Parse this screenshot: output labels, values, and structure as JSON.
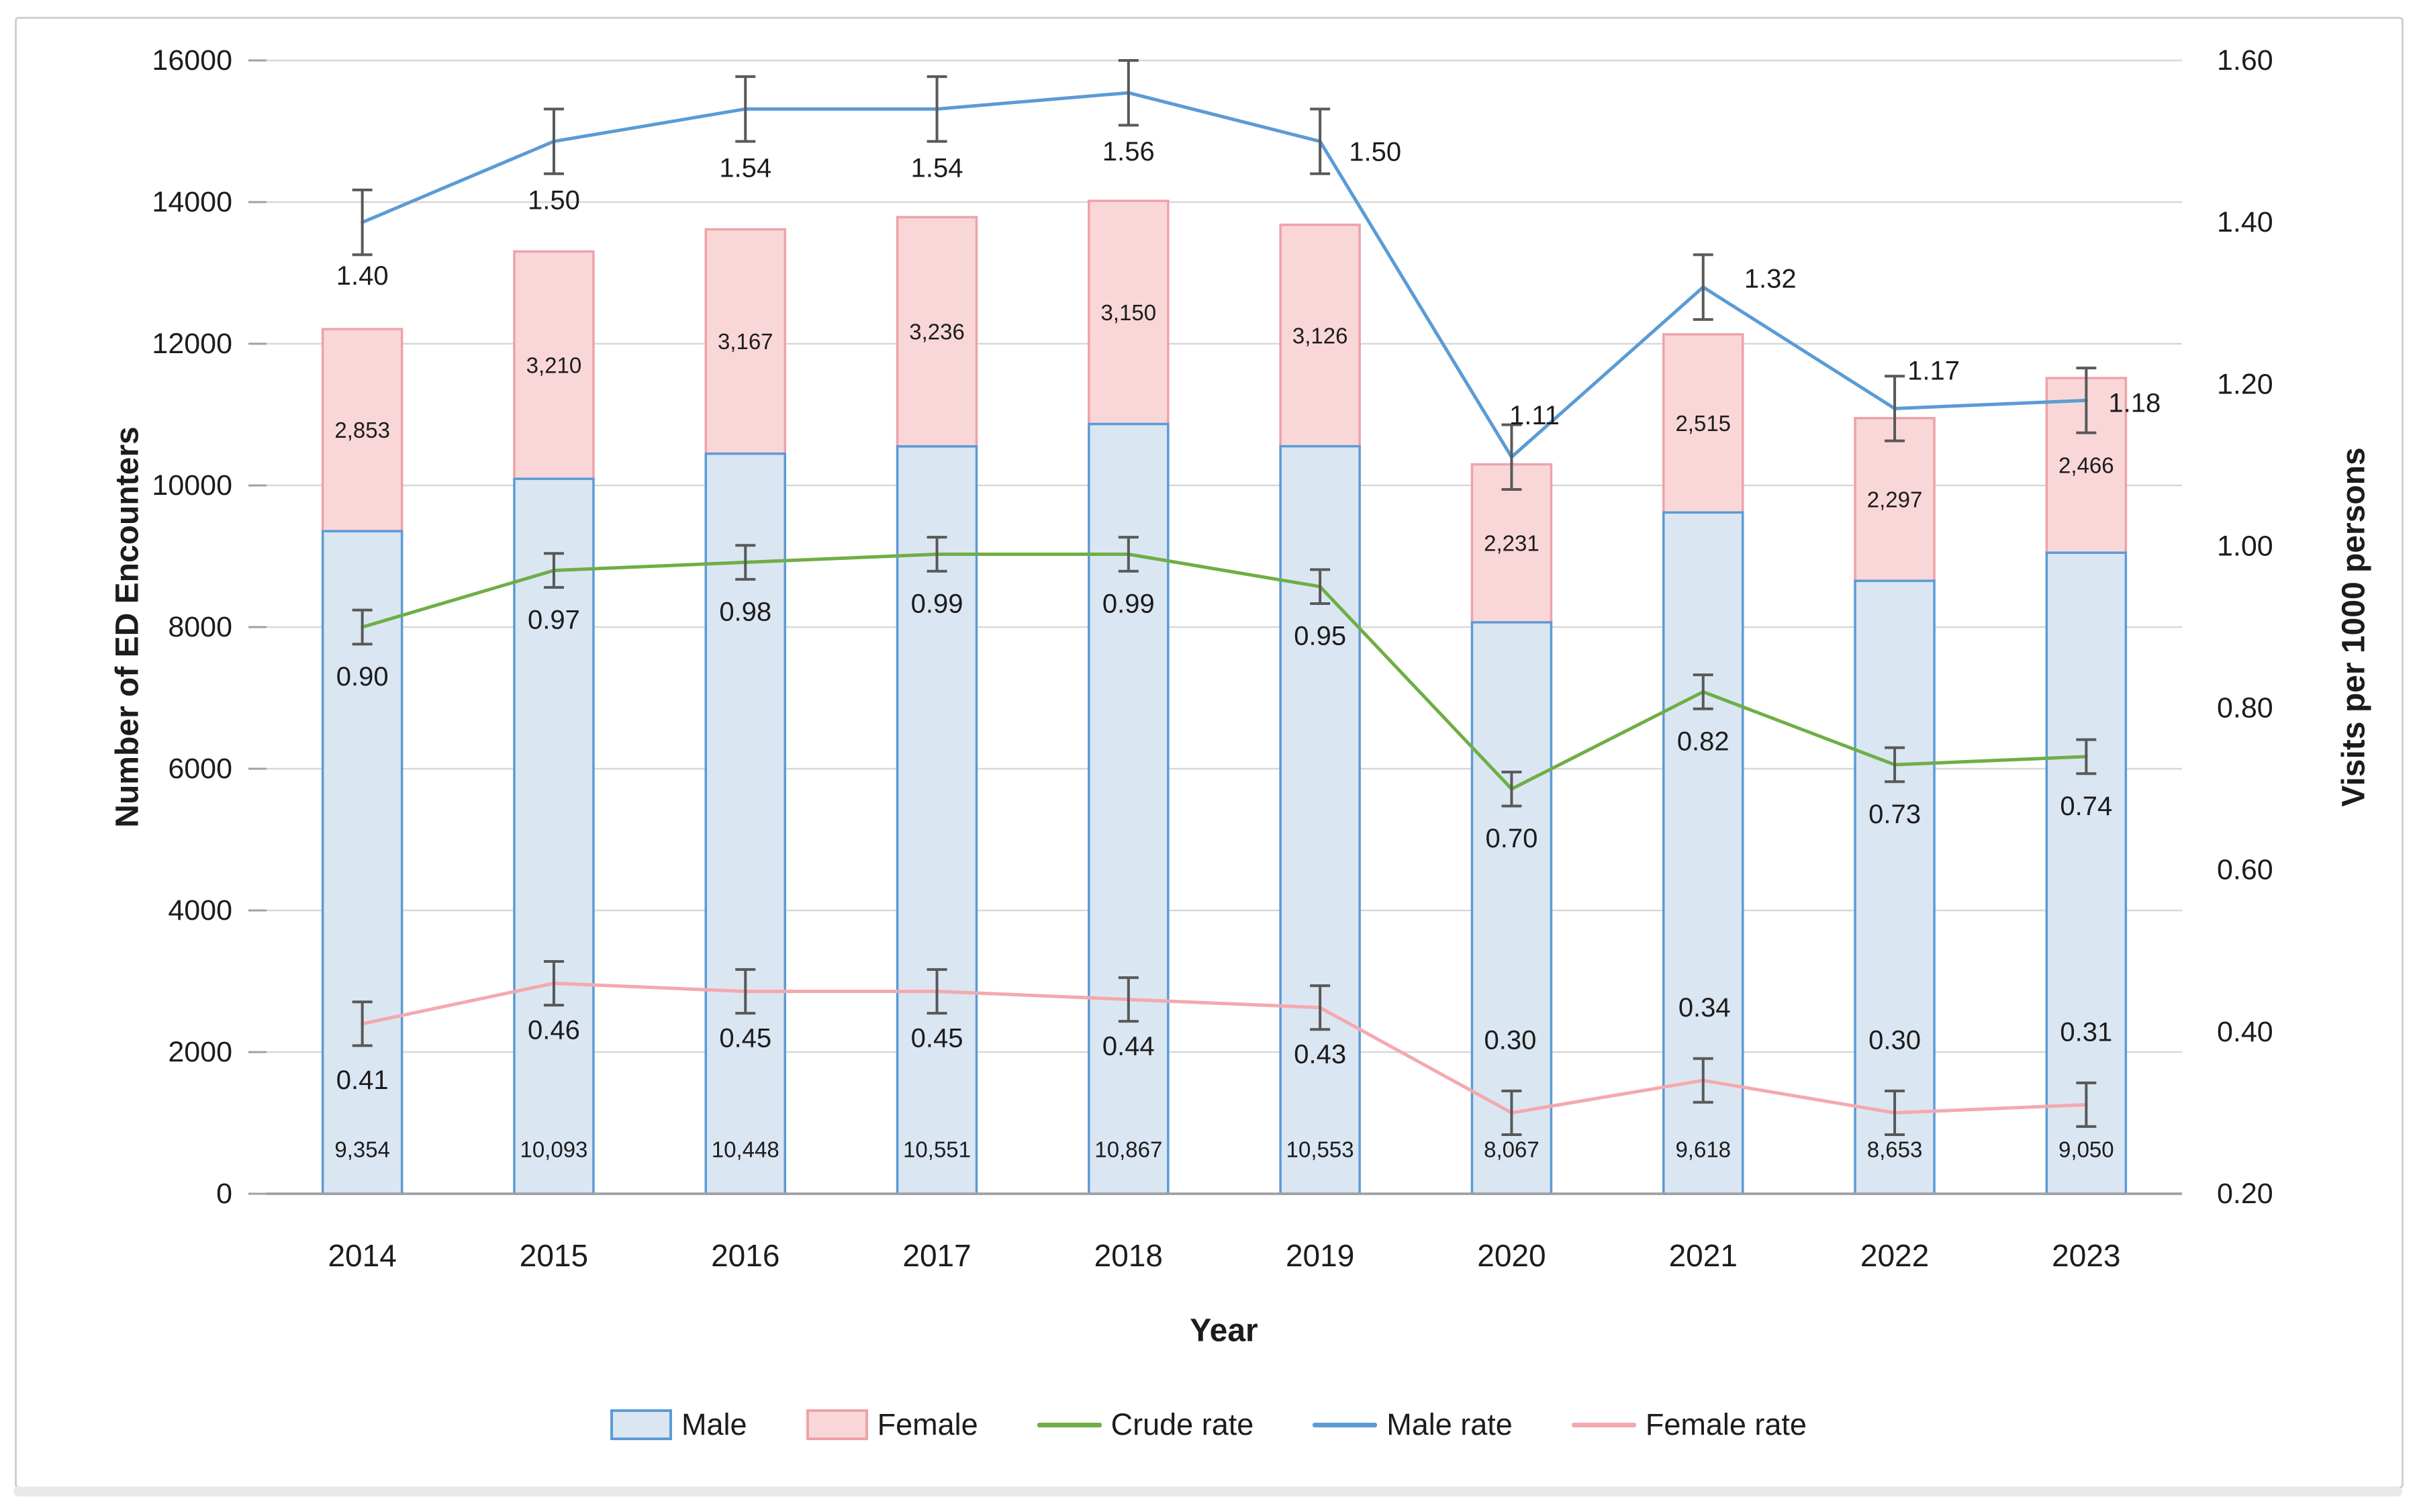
{
  "chart_data": {
    "type": "combo-bar-line",
    "title": "",
    "xlabel": "Year",
    "categories": [
      "2014",
      "2015",
      "2016",
      "2017",
      "2018",
      "2019",
      "2020",
      "2021",
      "2022",
      "2023"
    ],
    "left_axis": {
      "label": "Number of ED Encounters",
      "min": 0,
      "max": 16000,
      "tick_step": 2000,
      "ticks": [
        "16000",
        "14000",
        "12000",
        "10000",
        "8000",
        "6000",
        "4000",
        "2000",
        "0"
      ]
    },
    "right_axis": {
      "label": "Visits per 1000 persons",
      "min": 0.2,
      "max": 1.6,
      "tick_step": 0.2,
      "ticks": [
        "1.60",
        "1.40",
        "1.20",
        "1.00",
        "0.80",
        "0.60",
        "0.40",
        "0.20"
      ]
    },
    "bars": [
      {
        "name": "Male",
        "fill": "#dbe6f3",
        "stroke": "#5b9bd5",
        "values": [
          9354,
          10093,
          10448,
          10551,
          10867,
          10553,
          8067,
          9618,
          8653,
          9050
        ],
        "labels": [
          "9,354",
          "10,093",
          "10,448",
          "10,551",
          "10,867",
          "10,553",
          "8,067",
          "9,618",
          "8,653",
          "9,050"
        ]
      },
      {
        "name": "Female",
        "fill": "#f9d7d9",
        "stroke": "#efa2a7",
        "values": [
          2853,
          3210,
          3167,
          3236,
          3150,
          3126,
          2231,
          2515,
          2297,
          2466
        ],
        "labels": [
          "2,853",
          "3,210",
          "3,167",
          "3,236",
          "3,150",
          "3,126",
          "2,231",
          "2,515",
          "2,297",
          "2,466"
        ]
      }
    ],
    "lines": [
      {
        "name": "Crude rate",
        "color": "#6fae45",
        "error": 0.021,
        "values": [
          0.9,
          0.97,
          0.98,
          0.99,
          0.99,
          0.95,
          0.7,
          0.82,
          0.73,
          0.74
        ],
        "labels": [
          "0.90",
          "0.97",
          "0.98",
          "0.99",
          "0.99",
          "0.95",
          "0.70",
          "0.82",
          "0.73",
          "0.74"
        ]
      },
      {
        "name": "Male rate",
        "color": "#5b9bd5",
        "error": 0.04,
        "values": [
          1.4,
          1.5,
          1.54,
          1.54,
          1.56,
          1.5,
          1.11,
          1.32,
          1.17,
          1.18
        ],
        "labels": [
          "1.40",
          "1.50",
          "1.54",
          "1.54",
          "1.56",
          "1.50",
          "1.11",
          "1.32",
          "1.17",
          "1.18"
        ]
      },
      {
        "name": "Female rate",
        "color": "#f4a9ae",
        "error": 0.027,
        "values": [
          0.41,
          0.46,
          0.45,
          0.45,
          0.44,
          0.43,
          0.3,
          0.34,
          0.3,
          0.31
        ],
        "labels": [
          "0.41",
          "0.46",
          "0.45",
          "0.45",
          "0.44",
          "0.43",
          "0.30",
          "0.34",
          "0.30",
          "0.31"
        ]
      }
    ],
    "colors": {
      "gridline": "#d8d8d8",
      "axis_line": "#a0a0a0",
      "error_bar": "#595959",
      "text": "#1c1c1c"
    }
  },
  "legend": {
    "order": [
      "Male",
      "Female",
      "Crude rate",
      "Male rate",
      "Female rate"
    ]
  }
}
